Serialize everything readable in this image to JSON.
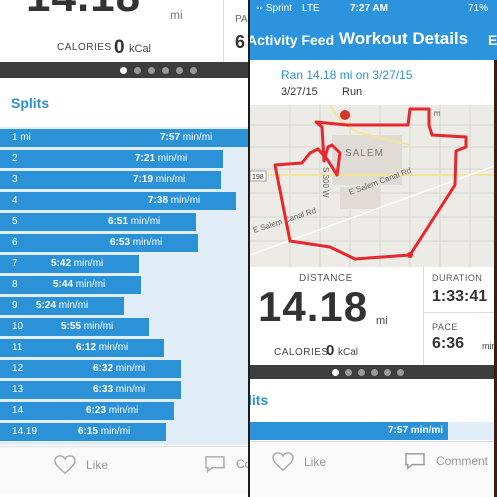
{
  "left": {
    "unit_top": "mi",
    "pa_label": "PA",
    "pace_partial": "6",
    "calories_label": "CALORIES",
    "calories_value": "0",
    "calories_unit": "kCal",
    "splits_title": "Splits",
    "splits": [
      {
        "mile": "1 mi",
        "pace": "7:57",
        "unit": "min/mi",
        "fraction": 1.0
      },
      {
        "mile": "2",
        "pace": "7:21",
        "unit": "min/mi",
        "fraction": 0.9
      },
      {
        "mile": "3",
        "pace": "7:19",
        "unit": "min/mi",
        "fraction": 0.89
      },
      {
        "mile": "4",
        "pace": "7:38",
        "unit": "min/mi",
        "fraction": 0.95
      },
      {
        "mile": "5",
        "pace": "6:51",
        "unit": "min/mi",
        "fraction": 0.79
      },
      {
        "mile": "6",
        "pace": "6:53",
        "unit": "min/mi",
        "fraction": 0.8
      },
      {
        "mile": "7",
        "pace": "5:42",
        "unit": "min/mi",
        "fraction": 0.56
      },
      {
        "mile": "8",
        "pace": "5:44",
        "unit": "min/mi",
        "fraction": 0.57
      },
      {
        "mile": "9",
        "pace": "5:24",
        "unit": "min/mi",
        "fraction": 0.5
      },
      {
        "mile": "10",
        "pace": "5:55",
        "unit": "min/mi",
        "fraction": 0.6
      },
      {
        "mile": "11",
        "pace": "6:12",
        "unit": "min/mi",
        "fraction": 0.66
      },
      {
        "mile": "12",
        "pace": "6:32",
        "unit": "min/mi",
        "fraction": 0.73
      },
      {
        "mile": "13",
        "pace": "6:33",
        "unit": "min/mi",
        "fraction": 0.73
      },
      {
        "mile": "14",
        "pace": "6:23",
        "unit": "min/mi",
        "fraction": 0.7
      },
      {
        "mile": "14.19",
        "pace": "6:15",
        "unit": "min/mi",
        "fraction": 0.67
      }
    ],
    "like_label": "Like",
    "comment_partial": "Co"
  },
  "right": {
    "status": {
      "carrier": "◦◦ Sprint",
      "network": "LTE",
      "time": "7:27 AM",
      "battery": "71%"
    },
    "nav": {
      "back_label": "Activity Feed",
      "title": "Workout Details",
      "edit_partial": "E"
    },
    "workout": {
      "title": "Ran 14.18 mi on 3/27/15",
      "date": "3/27/15",
      "type": "Run"
    },
    "map": {
      "label_salem": "SALEM",
      "label_300w": "S 300 W",
      "label_canal1": "E Salem Canal Rd",
      "label_canal2": "E Salem Canal Rd",
      "label_198": "198",
      "label_e": "E"
    },
    "stats": {
      "distance_label": "DISTANCE",
      "distance_value": "14.18",
      "distance_unit": "mi",
      "duration_label": "DURATION",
      "duration_value": "1:33:41",
      "pace_label": "PACE",
      "pace_value": "6:36",
      "pace_unit": "min/mi",
      "calories_label": "CALORIES",
      "calories_value": "0",
      "calories_unit": "kCal"
    },
    "splits_partial": "lits",
    "first_split": {
      "pace": "7:57 min/mi",
      "fraction": 0.8
    },
    "like_label": "Like",
    "comment_label": "Comment"
  },
  "colors": {
    "accent": "#2b94dd",
    "split_bar": "#2c92d8",
    "split_track": "#e1eef8",
    "route": "#e8262d"
  },
  "icons": [
    "heart-icon",
    "comment-icon",
    "map-pin-icon"
  ]
}
